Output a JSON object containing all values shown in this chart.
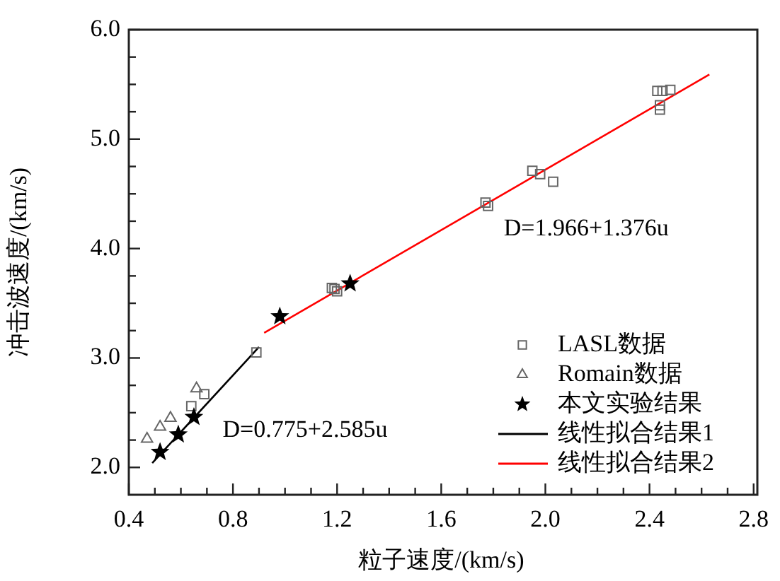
{
  "chart_data": {
    "type": "scatter",
    "xlabel": "粒子速度/(km/s)",
    "ylabel": "冲击波速度/(km/s)",
    "xlim": [
      0.4,
      2.8
    ],
    "xticks": [
      {
        "value": 0.4,
        "label": "0.4"
      },
      {
        "value": 0.5,
        "label": null
      },
      {
        "value": 0.6,
        "label": null
      },
      {
        "value": 0.7,
        "label": null
      },
      {
        "value": 0.8,
        "label": "0.8"
      },
      {
        "value": 0.9,
        "label": null
      },
      {
        "value": 1.0,
        "label": null
      },
      {
        "value": 1.1,
        "label": null
      },
      {
        "value": 1.2,
        "label": "1.2"
      },
      {
        "value": 1.3,
        "label": null
      },
      {
        "value": 1.4,
        "label": null
      },
      {
        "value": 1.5,
        "label": null
      },
      {
        "value": 1.6,
        "label": "1.6"
      },
      {
        "value": 1.7,
        "label": null
      },
      {
        "value": 1.8,
        "label": null
      },
      {
        "value": 1.9,
        "label": null
      },
      {
        "value": 2.0,
        "label": "2.0"
      },
      {
        "value": 2.1,
        "label": null
      },
      {
        "value": 2.2,
        "label": null
      },
      {
        "value": 2.3,
        "label": null
      },
      {
        "value": 2.4,
        "label": "2.4"
      },
      {
        "value": 2.5,
        "label": null
      },
      {
        "value": 2.6,
        "label": null
      },
      {
        "value": 2.7,
        "label": null
      },
      {
        "value": 2.8,
        "label": "2.8"
      }
    ],
    "ylim": [
      1.75,
      6.0
    ],
    "yticks": [
      {
        "value": 2.0,
        "label": "2.0"
      },
      {
        "value": 2.25,
        "label": null
      },
      {
        "value": 2.5,
        "label": null
      },
      {
        "value": 2.75,
        "label": null
      },
      {
        "value": 3.0,
        "label": "3.0"
      },
      {
        "value": 3.25,
        "label": null
      },
      {
        "value": 3.5,
        "label": null
      },
      {
        "value": 3.75,
        "label": null
      },
      {
        "value": 4.0,
        "label": "4.0"
      },
      {
        "value": 4.25,
        "label": null
      },
      {
        "value": 4.5,
        "label": null
      },
      {
        "value": 4.75,
        "label": null
      },
      {
        "value": 5.0,
        "label": "5.0"
      },
      {
        "value": 5.25,
        "label": null
      },
      {
        "value": 5.5,
        "label": null
      },
      {
        "value": 5.75,
        "label": null
      },
      {
        "value": 6.0,
        "label": "6.0"
      }
    ],
    "legend": "bottom right",
    "annotations": [
      "D=0.775+2.585u",
      "D=1.966+1.376u"
    ],
    "series": [
      {
        "name": "LASL数据",
        "marker": "square",
        "color": "#666666",
        "x": [
          0.64,
          0.69,
          0.89,
          1.18,
          1.19,
          1.2,
          1.77,
          1.78,
          1.95,
          1.98,
          2.03,
          2.43,
          2.45,
          2.48,
          2.44,
          2.44
        ],
        "values": [
          2.56,
          2.67,
          3.05,
          3.64,
          3.63,
          3.61,
          4.42,
          4.39,
          4.71,
          4.68,
          4.61,
          5.44,
          5.44,
          5.45,
          5.31,
          5.27
        ]
      },
      {
        "name": "Romain数据",
        "marker": "triangle",
        "color": "#666666",
        "x": [
          0.47,
          0.52,
          0.56,
          0.66
        ],
        "values": [
          2.26,
          2.37,
          2.45,
          2.72
        ]
      },
      {
        "name": "本文实验结果",
        "marker": "star",
        "color": "#000000",
        "x": [
          0.52,
          0.59,
          0.65,
          0.98,
          1.25
        ],
        "values": [
          2.14,
          2.3,
          2.46,
          3.38,
          3.68
        ]
      },
      {
        "name": "线性拟合结果1",
        "type": "line",
        "marker": "none",
        "color": "#000000",
        "x": [
          0.49,
          0.9
        ],
        "values": [
          2.04,
          3.1
        ]
      },
      {
        "name": "线性拟合结果2",
        "type": "line",
        "marker": "none",
        "color": "#ff0000",
        "x": [
          0.92,
          2.63
        ],
        "values": [
          3.23,
          5.59
        ]
      }
    ]
  }
}
